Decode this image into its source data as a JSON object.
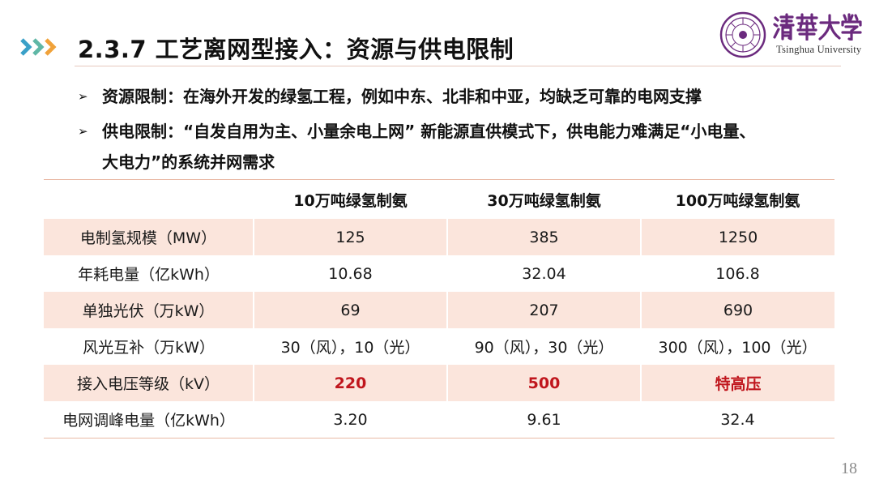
{
  "header": {
    "title": "2.3.7 工艺离网型接入：资源与供电限制",
    "colors": {
      "chevron_blue": "#3aa0c8",
      "chevron_teal": "#5fb7a6",
      "chevron_orange": "#f0a23a",
      "rule": "#e6c9bd"
    }
  },
  "logo": {
    "name_cn": "清華大學",
    "name_en": "Tsinghua University",
    "seal_icon": "tsinghua-seal-icon",
    "brand_color": "#6b2a7e"
  },
  "bullets": [
    {
      "icon": "arrow-bullet-icon",
      "text": "资源限制：在海外开发的绿氢工程，例如中东、北非和中亚，均缺乏可靠的电网支撑"
    },
    {
      "icon": "arrow-bullet-icon",
      "text": "供电限制：“自发自用为主、小量余电上网” 新能源直供模式下，供电能力难满足“小电量、",
      "continuation": "大电力”的系统并网需求"
    }
  ],
  "table": {
    "headers": [
      "",
      "10万吨绿氢制氨",
      "30万吨绿氢制氨",
      "100万吨绿氢制氨"
    ],
    "rows": [
      {
        "label": "电制氢规模（MW）",
        "values": [
          "125",
          "385",
          "1250"
        ]
      },
      {
        "label": "年耗电量（亿kWh）",
        "values": [
          "10.68",
          "32.04",
          "106.8"
        ]
      },
      {
        "label": "单独光伏（万kW）",
        "values": [
          "69",
          "207",
          "690"
        ]
      },
      {
        "label": "风光互补（万kW）",
        "values": [
          "30（风），10（光）",
          "90（风），30（光）",
          "300（风），100（光）"
        ]
      },
      {
        "label": "接入电压等级（kV）",
        "values": [
          "220",
          "500",
          "特高压"
        ]
      },
      {
        "label": "电网调峰电量（亿kWh）",
        "values": [
          "3.20",
          "9.61",
          "32.4"
        ]
      }
    ],
    "colors": {
      "shade": "#fbe5dc",
      "highlight": "#c0161d",
      "border": "#e9b9a5"
    }
  },
  "page_number": "18"
}
